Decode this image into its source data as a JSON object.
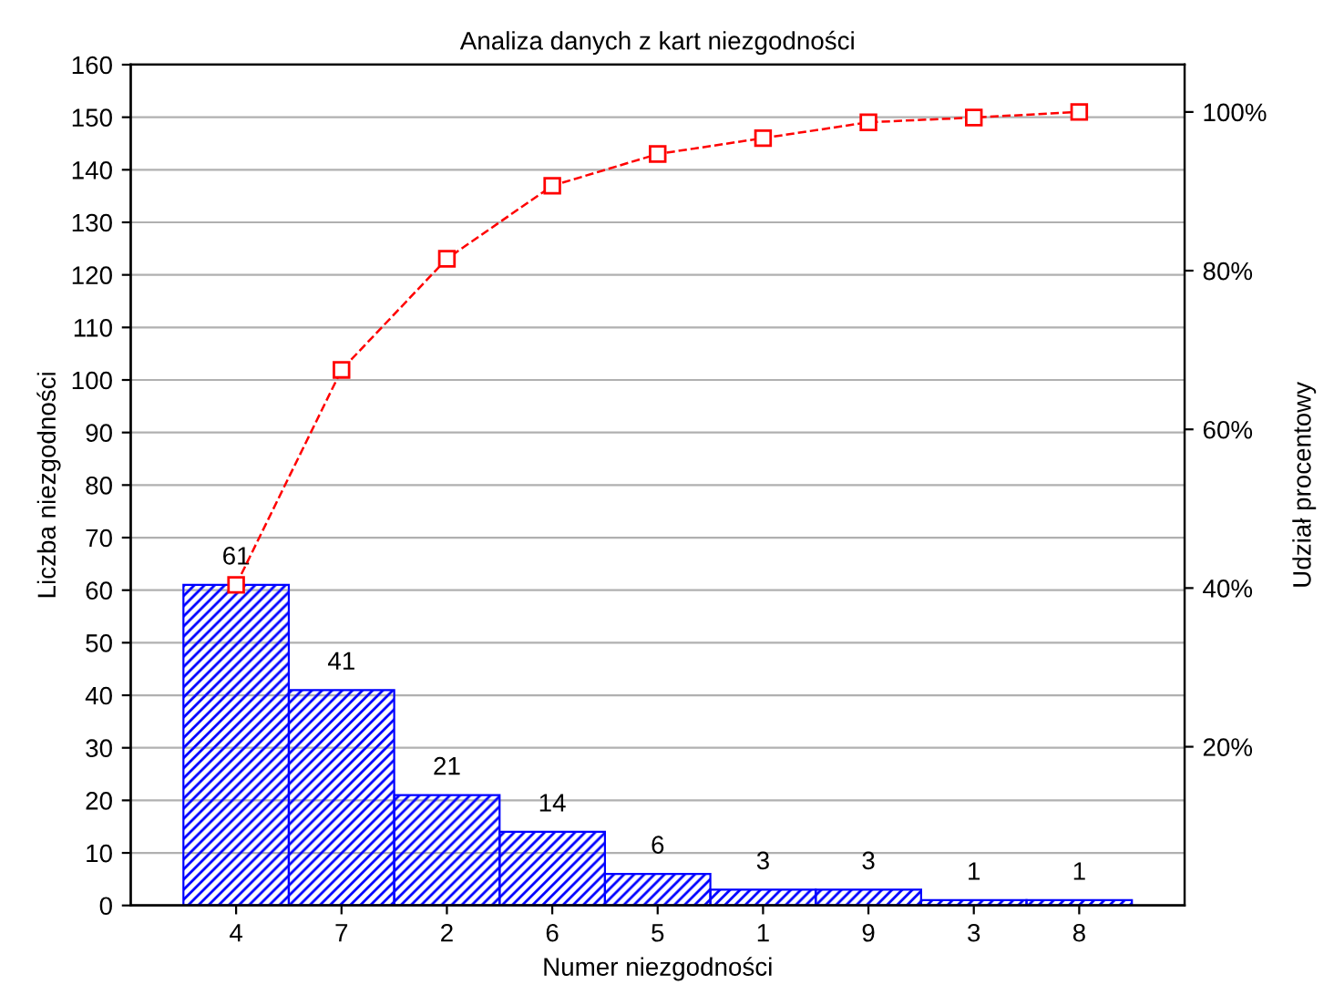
{
  "chart_data": {
    "type": "bar",
    "title": "Analiza danych z kart niezgodności",
    "xlabel": "Numer niezgodności",
    "ylabel": "Liczba niezgodności",
    "y2label": "Udział procentowy",
    "categories": [
      "4",
      "7",
      "2",
      "6",
      "5",
      "1",
      "9",
      "3",
      "8"
    ],
    "series": [
      {
        "color": "#0000ff",
        "values": [
          61,
          41,
          21,
          14,
          6,
          3,
          3,
          1,
          1
        ],
        "value_labels": [
          "61",
          "41",
          "21",
          "14",
          "6",
          "3",
          "3",
          "1",
          "1"
        ]
      },
      {
        "type": "line",
        "axis": "y2",
        "color": "#ff0000",
        "marker": "square",
        "line_style": "dashed",
        "values": [
          40.4,
          67.5,
          81.5,
          90.7,
          94.7,
          96.7,
          98.7,
          99.3,
          100
        ]
      }
    ],
    "ylim": [
      0,
      160
    ],
    "yticks": [
      0,
      10,
      20,
      30,
      40,
      50,
      60,
      70,
      80,
      90,
      100,
      110,
      120,
      130,
      140,
      150,
      160
    ],
    "y2lim": [
      0,
      105.96
    ],
    "y2ticks": [
      {
        "value": 20,
        "label": "20%"
      },
      {
        "value": 40,
        "label": "40%"
      },
      {
        "value": 60,
        "label": "60%"
      },
      {
        "value": 80,
        "label": "80%"
      },
      {
        "value": 100,
        "label": "100%"
      }
    ],
    "grid": "y",
    "legend": false
  }
}
